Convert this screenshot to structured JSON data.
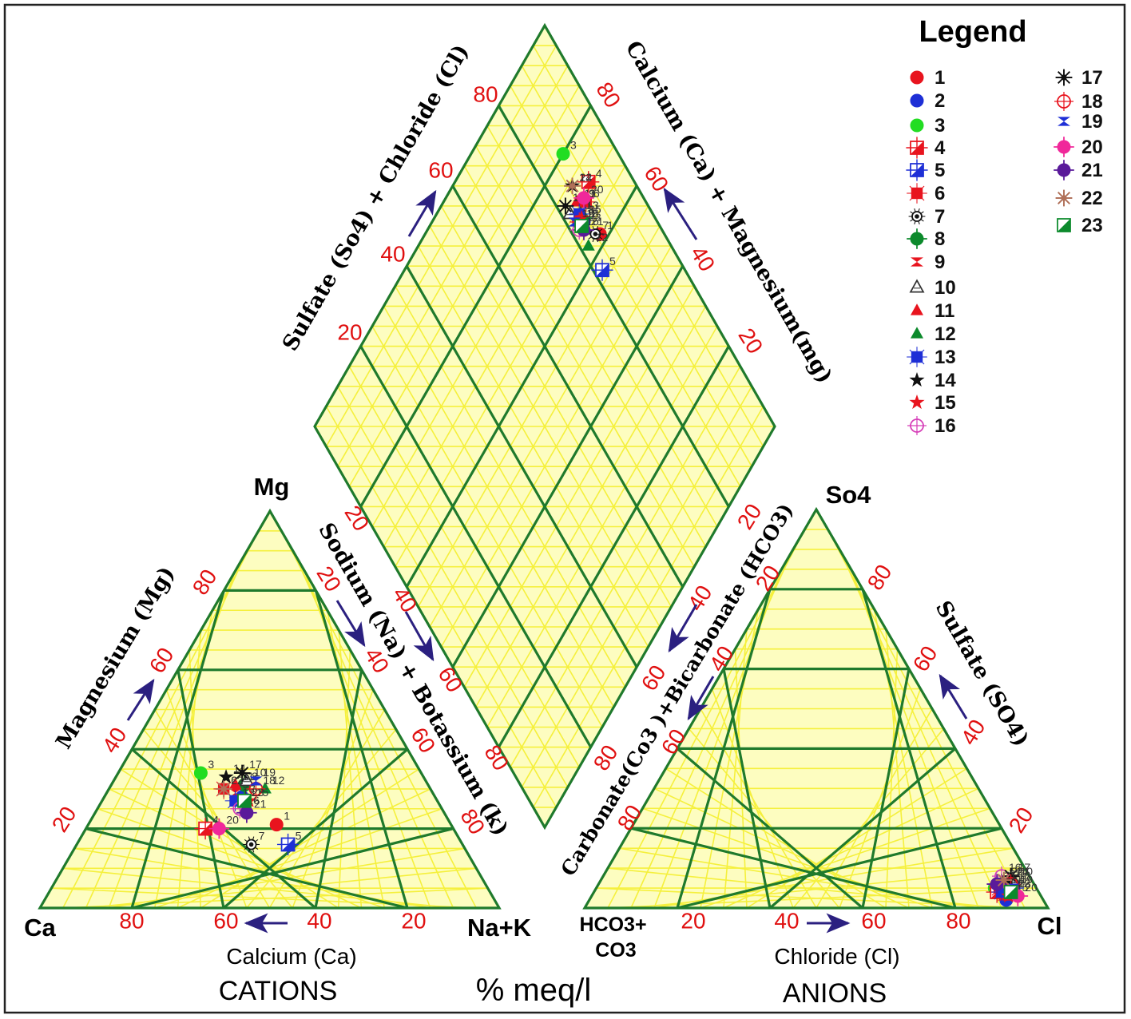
{
  "chart_data": {
    "type": "piper",
    "legend": {
      "title": "Legend",
      "entries": [
        {
          "label": "1",
          "marker": "circle",
          "color": "#e8141e"
        },
        {
          "label": "2",
          "marker": "circle",
          "color": "#1e2fd6"
        },
        {
          "label": "3",
          "marker": "circle",
          "color": "#22dd22"
        },
        {
          "label": "4",
          "marker": "square-cross",
          "color": "#e8141e"
        },
        {
          "label": "5",
          "marker": "square-cross",
          "color": "#1e2fd6"
        },
        {
          "label": "6",
          "marker": "square-star",
          "color": "#e8141e"
        },
        {
          "label": "7",
          "marker": "spiky",
          "color": "#111111"
        },
        {
          "label": "8",
          "marker": "circle-cross",
          "color": "#0c8a2c"
        },
        {
          "label": "9",
          "marker": "hourglass",
          "color": "#e8141e"
        },
        {
          "label": "10",
          "marker": "triangle-open",
          "color": "#333333"
        },
        {
          "label": "11",
          "marker": "triangle",
          "color": "#e8141e"
        },
        {
          "label": "12",
          "marker": "triangle",
          "color": "#0c8a2c"
        },
        {
          "label": "13",
          "marker": "square-star",
          "color": "#1e2fd6"
        },
        {
          "label": "14",
          "marker": "star",
          "color": "#111111"
        },
        {
          "label": "15",
          "marker": "star",
          "color": "#e8141e"
        },
        {
          "label": "16",
          "marker": "circle-open",
          "color": "#d63fb8"
        },
        {
          "label": "17",
          "marker": "asterisk",
          "color": "#111111"
        },
        {
          "label": "18",
          "marker": "circle-open",
          "color": "#e8141e"
        },
        {
          "label": "19",
          "marker": "hourglass",
          "color": "#1e2fd6"
        },
        {
          "label": "20",
          "marker": "circle-cross",
          "color": "#f0289a"
        },
        {
          "label": "21",
          "marker": "circle-cross",
          "color": "#5a1a9a"
        },
        {
          "label": "22",
          "marker": "asterisk",
          "color": "#b07058"
        },
        {
          "label": "23",
          "marker": "square-half",
          "color": "#0c8a2c"
        }
      ]
    },
    "cation_triangle": {
      "vertex_labels": {
        "left": "Ca",
        "top": "Mg",
        "right": "Na+K"
      },
      "axis_label_left": "Magnesium (Mg)",
      "axis_label_right": "Sodium (Na) + Botassium (k)",
      "bottom_label": "Calcium (Ca)",
      "title": "CATIONS",
      "ticks": [
        "20",
        "40",
        "60",
        "80"
      ]
    },
    "anion_triangle": {
      "vertex_labels": {
        "left": "HCO3+\nCO3",
        "top": "So4",
        "right": "Cl"
      },
      "axis_label_left": "Carbonate(Co3 )+Bicarbonate (HCO3)",
      "axis_label_right": "Sulfate (SO4)",
      "bottom_label": "Chloride (Cl)",
      "title": "ANIONS",
      "ticks": [
        "20",
        "40",
        "60",
        "80"
      ]
    },
    "diamond": {
      "axis_label_left": "Sulfate (So4) + Chloride (Cl)",
      "axis_label_right": "Calcium (Ca) + Magnesium(mg)",
      "ticks": [
        "20",
        "40",
        "60",
        "80"
      ]
    },
    "unit_label": "% meq/l",
    "samples": {
      "cation": [
        {
          "id": "1",
          "ca": 38,
          "mg": 21,
          "na_k": 41
        },
        {
          "id": "2",
          "ca": 42,
          "mg": 28,
          "na_k": 30
        },
        {
          "id": "3",
          "ca": 48,
          "mg": 34,
          "na_k": 18
        },
        {
          "id": "4",
          "ca": 54,
          "mg": 20,
          "na_k": 26
        },
        {
          "id": "5",
          "ca": 38,
          "mg": 16,
          "na_k": 46
        },
        {
          "id": "6",
          "ca": 45,
          "mg": 30,
          "na_k": 25
        },
        {
          "id": "7",
          "ca": 46,
          "mg": 16,
          "na_k": 38
        },
        {
          "id": "8",
          "ca": 40,
          "mg": 31,
          "na_k": 29
        },
        {
          "id": "9",
          "ca": 43,
          "mg": 29,
          "na_k": 28
        },
        {
          "id": "10",
          "ca": 39,
          "mg": 32,
          "na_k": 29
        },
        {
          "id": "11",
          "ca": 42,
          "mg": 31,
          "na_k": 27
        },
        {
          "id": "12",
          "ca": 36,
          "mg": 30,
          "na_k": 34
        },
        {
          "id": "13",
          "ca": 44,
          "mg": 27,
          "na_k": 29
        },
        {
          "id": "14",
          "ca": 43,
          "mg": 33,
          "na_k": 24
        },
        {
          "id": "15",
          "ca": 41,
          "mg": 27,
          "na_k": 32
        },
        {
          "id": "16",
          "ca": 44,
          "mg": 25,
          "na_k": 31
        },
        {
          "id": "17",
          "ca": 39,
          "mg": 34,
          "na_k": 27
        },
        {
          "id": "18",
          "ca": 38,
          "mg": 30,
          "na_k": 32
        },
        {
          "id": "19",
          "ca": 37,
          "mg": 32,
          "na_k": 31
        },
        {
          "id": "20",
          "ca": 51,
          "mg": 20,
          "na_k": 29
        },
        {
          "id": "21",
          "ca": 43,
          "mg": 24,
          "na_k": 33
        },
        {
          "id": "22",
          "ca": 45,
          "mg": 30,
          "na_k": 25
        },
        {
          "id": "23",
          "ca": 42,
          "mg": 27,
          "na_k": 31
        }
      ],
      "anion": [
        {
          "id": "1",
          "hco3_co3": 7,
          "so4": 4,
          "cl": 89
        },
        {
          "id": "2",
          "hco3_co3": 8,
          "so4": 2,
          "cl": 90
        },
        {
          "id": "3",
          "hco3_co3": 9,
          "so4": 5,
          "cl": 86
        },
        {
          "id": "4",
          "hco3_co3": 9,
          "so4": 4,
          "cl": 87
        },
        {
          "id": "5",
          "hco3_co3": 5,
          "so4": 5,
          "cl": 90
        },
        {
          "id": "6",
          "hco3_co3": 8,
          "so4": 5,
          "cl": 87
        },
        {
          "id": "7",
          "hco3_co3": 6,
          "so4": 6,
          "cl": 88
        },
        {
          "id": "8",
          "hco3_co3": 7,
          "so4": 6,
          "cl": 87
        },
        {
          "id": "9",
          "hco3_co3": 8,
          "so4": 3,
          "cl": 89
        },
        {
          "id": "10",
          "hco3_co3": 4,
          "so4": 7,
          "cl": 89
        },
        {
          "id": "11",
          "hco3_co3": 7,
          "so4": 5,
          "cl": 88
        },
        {
          "id": "12",
          "hco3_co3": 6,
          "so4": 4,
          "cl": 90
        },
        {
          "id": "13",
          "hco3_co3": 8,
          "so4": 4,
          "cl": 88
        },
        {
          "id": "14",
          "hco3_co3": 5,
          "so4": 7,
          "cl": 88
        },
        {
          "id": "15",
          "hco3_co3": 7,
          "so4": 3,
          "cl": 90
        },
        {
          "id": "16",
          "hco3_co3": 6,
          "so4": 8,
          "cl": 86
        },
        {
          "id": "17",
          "hco3_co3": 4,
          "so4": 8,
          "cl": 88
        },
        {
          "id": "18",
          "hco3_co3": 5,
          "so4": 6,
          "cl": 89
        },
        {
          "id": "19",
          "hco3_co3": 5,
          "so4": 5,
          "cl": 90
        },
        {
          "id": "20",
          "hco3_co3": 5,
          "so4": 3,
          "cl": 92
        },
        {
          "id": "21",
          "hco3_co3": 8,
          "so4": 6,
          "cl": 86
        },
        {
          "id": "22",
          "hco3_co3": 6,
          "so4": 7,
          "cl": 87
        },
        {
          "id": "23",
          "hco3_co3": 6,
          "so4": 4,
          "cl": 90
        }
      ],
      "diamond": [
        {
          "id": "1",
          "so4_cl": 86,
          "ca_mg": 62
        },
        {
          "id": "2",
          "so4_cl": 84,
          "ca_mg": 67
        },
        {
          "id": "3",
          "so4_cl": 88,
          "ca_mg": 80
        },
        {
          "id": "4",
          "so4_cl": 90,
          "ca_mg": 71
        },
        {
          "id": "5",
          "so4_cl": 82,
          "ca_mg": 57
        },
        {
          "id": "6",
          "so4_cl": 87,
          "ca_mg": 69
        },
        {
          "id": "7",
          "so4_cl": 85,
          "ca_mg": 63
        },
        {
          "id": "8",
          "so4_cl": 84,
          "ca_mg": 68
        },
        {
          "id": "9",
          "so4_cl": 86,
          "ca_mg": 70
        },
        {
          "id": "10",
          "so4_cl": 82,
          "ca_mg": 71
        },
        {
          "id": "11",
          "so4_cl": 85,
          "ca_mg": 71
        },
        {
          "id": "12",
          "so4_cl": 82,
          "ca_mg": 63
        },
        {
          "id": "13",
          "so4_cl": 84,
          "ca_mg": 69
        },
        {
          "id": "14",
          "so4_cl": 86,
          "ca_mg": 74
        },
        {
          "id": "15",
          "so4_cl": 84,
          "ca_mg": 68
        },
        {
          "id": "16",
          "so4_cl": 82,
          "ca_mg": 67
        },
        {
          "id": "17",
          "so4_cl": 82,
          "ca_mg": 73
        },
        {
          "id": "18",
          "so4_cl": 83,
          "ca_mg": 68
        },
        {
          "id": "19",
          "so4_cl": 82,
          "ca_mg": 69
        },
        {
          "id": "20",
          "so4_cl": 87,
          "ca_mg": 70
        },
        {
          "id": "21",
          "so4_cl": 83,
          "ca_mg": 66
        },
        {
          "id": "22",
          "so4_cl": 86,
          "ca_mg": 74
        },
        {
          "id": "23",
          "so4_cl": 83,
          "ca_mg": 67
        }
      ]
    }
  }
}
